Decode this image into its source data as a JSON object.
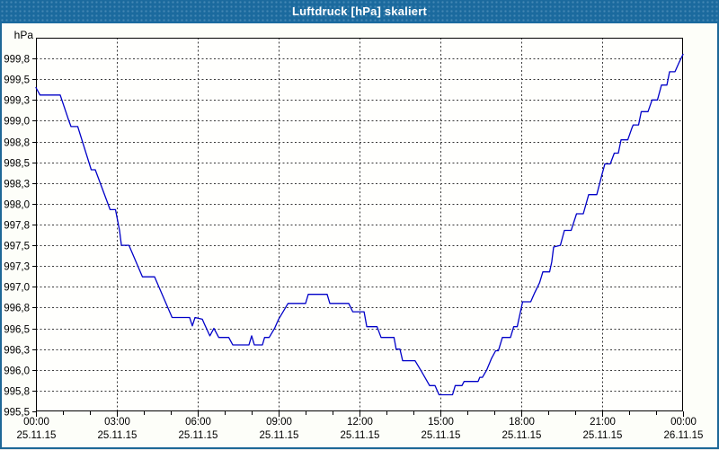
{
  "window": {
    "title": "Luftdruck [hPa] skaliert"
  },
  "colors": {
    "titlebar_bg": "#1b6a9e",
    "title_text": "#ffffff",
    "window_border": "#1e6897",
    "content_bg": "#fdfef9",
    "plot_bg": "#fffffd",
    "frame": "#000000",
    "grid": "#3a3a3a",
    "line": "#0000c8",
    "text": "#000000"
  },
  "chart_data": {
    "type": "line",
    "title": "Luftdruck [hPa] skaliert",
    "ylabel": "hPa",
    "xlabel": "",
    "ylim": [
      995.5,
      1000.0
    ],
    "xlim_hours": [
      0,
      24
    ],
    "grid": true,
    "legend": "none",
    "y_ticks": [
      {
        "value": 999.75,
        "label": "999,8"
      },
      {
        "value": 999.5,
        "label": "999,5"
      },
      {
        "value": 999.25,
        "label": "999,3"
      },
      {
        "value": 999.0,
        "label": "999,0"
      },
      {
        "value": 998.75,
        "label": "998,8"
      },
      {
        "value": 998.5,
        "label": "998,5"
      },
      {
        "value": 998.25,
        "label": "998,3"
      },
      {
        "value": 998.0,
        "label": "998,0"
      },
      {
        "value": 997.75,
        "label": "997,8"
      },
      {
        "value": 997.5,
        "label": "997,5"
      },
      {
        "value": 997.25,
        "label": "997,3"
      },
      {
        "value": 997.0,
        "label": "997,0"
      },
      {
        "value": 996.75,
        "label": "996,8"
      },
      {
        "value": 996.5,
        "label": "996,5"
      },
      {
        "value": 996.25,
        "label": "996,3"
      },
      {
        "value": 996.0,
        "label": "996,0"
      },
      {
        "value": 995.75,
        "label": "995,8"
      },
      {
        "value": 995.5,
        "label": "995,5"
      }
    ],
    "x_ticks": [
      {
        "hour": 0,
        "time": "00:00",
        "date": "25.11.15"
      },
      {
        "hour": 3,
        "time": "03:00",
        "date": "25.11.15"
      },
      {
        "hour": 6,
        "time": "06:00",
        "date": "25.11.15"
      },
      {
        "hour": 9,
        "time": "09:00",
        "date": "25.11.15"
      },
      {
        "hour": 12,
        "time": "12:00",
        "date": "25.11.15"
      },
      {
        "hour": 15,
        "time": "15:00",
        "date": "25.11.15"
      },
      {
        "hour": 18,
        "time": "18:00",
        "date": "25.11.15"
      },
      {
        "hour": 21,
        "time": "21:00",
        "date": "25.11.15"
      },
      {
        "hour": 24,
        "time": "00:00",
        "date": "26.11.15"
      }
    ],
    "x_minor_tick_hours": 1,
    "series": [
      {
        "name": "Luftdruck",
        "points": [
          [
            0,
            999.4
          ],
          [
            0.15,
            999.31
          ],
          [
            0.9,
            999.31
          ],
          [
            1.22,
            999.0
          ],
          [
            1.3,
            998.93
          ],
          [
            1.55,
            998.93
          ],
          [
            2.05,
            998.41
          ],
          [
            2.2,
            998.41
          ],
          [
            2.75,
            997.93
          ],
          [
            2.95,
            997.93
          ],
          [
            3.1,
            997.68
          ],
          [
            3.17,
            997.5
          ],
          [
            3.45,
            997.5
          ],
          [
            3.95,
            997.12
          ],
          [
            4.4,
            997.12
          ],
          [
            5.05,
            996.63
          ],
          [
            5.7,
            996.63
          ],
          [
            5.8,
            996.53
          ],
          [
            5.9,
            996.63
          ],
          [
            6.17,
            996.61
          ],
          [
            6.25,
            996.55
          ],
          [
            6.45,
            996.41
          ],
          [
            6.6,
            996.5
          ],
          [
            6.78,
            996.39
          ],
          [
            7.15,
            996.39
          ],
          [
            7.3,
            996.3
          ],
          [
            7.9,
            996.3
          ],
          [
            8.0,
            996.41
          ],
          [
            8.1,
            996.3
          ],
          [
            8.4,
            996.3
          ],
          [
            8.48,
            996.39
          ],
          [
            8.65,
            996.39
          ],
          [
            8.85,
            996.5
          ],
          [
            9.0,
            996.61
          ],
          [
            9.35,
            996.8
          ],
          [
            10.0,
            996.8
          ],
          [
            10.1,
            996.91
          ],
          [
            10.8,
            996.91
          ],
          [
            10.9,
            996.8
          ],
          [
            11.6,
            996.8
          ],
          [
            11.75,
            996.7
          ],
          [
            12.17,
            996.7
          ],
          [
            12.27,
            996.52
          ],
          [
            12.65,
            996.52
          ],
          [
            12.8,
            996.39
          ],
          [
            13.28,
            996.39
          ],
          [
            13.36,
            996.25
          ],
          [
            13.5,
            996.25
          ],
          [
            13.6,
            996.11
          ],
          [
            14.06,
            996.11
          ],
          [
            14.3,
            995.98
          ],
          [
            14.6,
            995.81
          ],
          [
            14.8,
            995.81
          ],
          [
            14.95,
            995.7
          ],
          [
            15.45,
            995.7
          ],
          [
            15.55,
            995.81
          ],
          [
            15.8,
            995.81
          ],
          [
            15.88,
            995.86
          ],
          [
            16.4,
            995.86
          ],
          [
            16.46,
            995.91
          ],
          [
            16.56,
            995.91
          ],
          [
            16.72,
            996.0
          ],
          [
            16.9,
            996.14
          ],
          [
            17.05,
            996.23
          ],
          [
            17.15,
            996.23
          ],
          [
            17.3,
            996.39
          ],
          [
            17.6,
            996.39
          ],
          [
            17.72,
            996.52
          ],
          [
            17.85,
            996.52
          ],
          [
            18.05,
            996.82
          ],
          [
            18.35,
            996.82
          ],
          [
            18.5,
            996.93
          ],
          [
            18.68,
            997.05
          ],
          [
            18.8,
            997.18
          ],
          [
            19.05,
            997.18
          ],
          [
            19.13,
            997.3
          ],
          [
            19.2,
            997.48
          ],
          [
            19.45,
            997.5
          ],
          [
            19.6,
            997.68
          ],
          [
            19.85,
            997.68
          ],
          [
            20.05,
            997.88
          ],
          [
            20.3,
            997.88
          ],
          [
            20.5,
            998.11
          ],
          [
            20.8,
            998.11
          ],
          [
            21.0,
            998.36
          ],
          [
            21.1,
            998.48
          ],
          [
            21.3,
            998.48
          ],
          [
            21.45,
            998.61
          ],
          [
            21.6,
            998.61
          ],
          [
            21.7,
            998.77
          ],
          [
            21.95,
            998.77
          ],
          [
            22.1,
            998.91
          ],
          [
            22.15,
            998.95
          ],
          [
            22.35,
            998.95
          ],
          [
            22.45,
            999.11
          ],
          [
            22.7,
            999.11
          ],
          [
            22.85,
            999.25
          ],
          [
            23.05,
            999.25
          ],
          [
            23.2,
            999.43
          ],
          [
            23.4,
            999.43
          ],
          [
            23.5,
            999.59
          ],
          [
            23.7,
            999.59
          ],
          [
            23.85,
            999.7
          ],
          [
            24,
            999.8
          ]
        ]
      }
    ]
  }
}
